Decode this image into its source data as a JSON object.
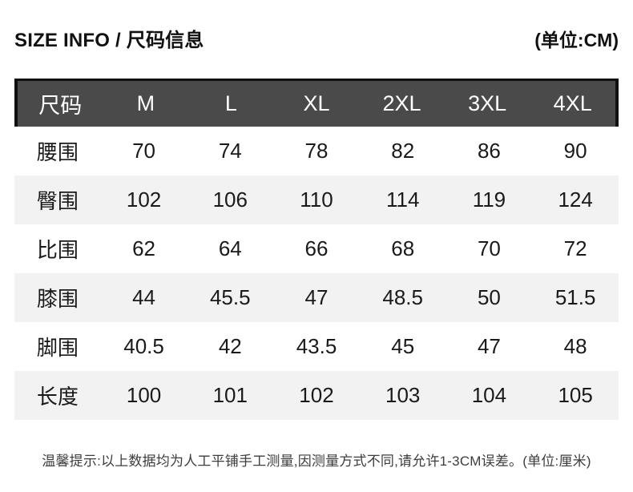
{
  "header": {
    "title": "SIZE INFO / 尺码信息",
    "unit_label": "(单位:CM)"
  },
  "table": {
    "columns": [
      "尺码",
      "M",
      "L",
      "XL",
      "2XL",
      "3XL",
      "4XL"
    ],
    "rows": [
      {
        "label": "腰围",
        "values": [
          "70",
          "74",
          "78",
          "82",
          "86",
          "90"
        ]
      },
      {
        "label": "臀围",
        "values": [
          "102",
          "106",
          "110",
          "114",
          "119",
          "124"
        ]
      },
      {
        "label": "比围",
        "values": [
          "62",
          "64",
          "66",
          "68",
          "70",
          "72"
        ]
      },
      {
        "label": "膝围",
        "values": [
          "44",
          "45.5",
          "47",
          "48.5",
          "50",
          "51.5"
        ]
      },
      {
        "label": "脚围",
        "values": [
          "40.5",
          "42",
          "43.5",
          "45",
          "47",
          "48"
        ]
      },
      {
        "label": "长度",
        "values": [
          "100",
          "101",
          "102",
          "103",
          "104",
          "105"
        ]
      }
    ]
  },
  "footer": {
    "note": "温馨提示:以上数据均为人工平铺手工测量,因测量方式不同,请允许1-3CM误差。(单位:厘米)"
  },
  "colors": {
    "header_bg": "#4a4a4a",
    "header_border": "#101010",
    "row_alt_bg": "#f2f2f2",
    "text": "#1a1a1a"
  }
}
